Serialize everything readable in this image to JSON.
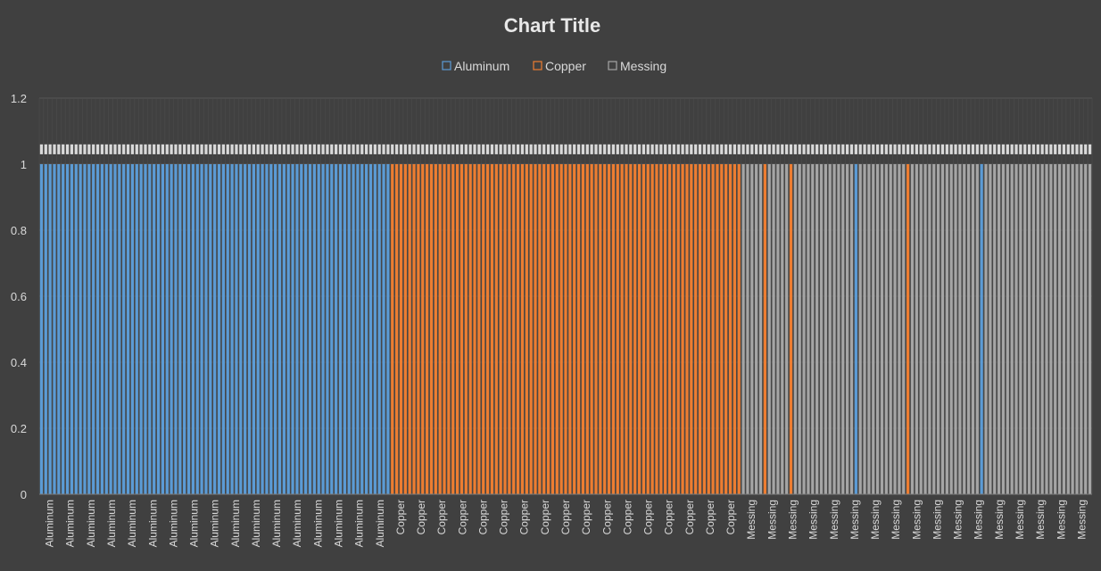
{
  "chart_data": {
    "type": "bar",
    "title": "Chart Title",
    "xlabel": "",
    "ylabel": "",
    "ylim": [
      0,
      1.2
    ],
    "yticks": [
      "0",
      "0.2",
      "0.4",
      "0.6",
      "0.8",
      "1",
      "1.2"
    ],
    "grid": true,
    "legend_position": "top",
    "stacked": true,
    "series": [
      {
        "name": "Aluminum",
        "color": "#5b9bd5"
      },
      {
        "name": "Copper",
        "color": "#ed7d31"
      },
      {
        "name": "Messing",
        "color": "#a5a5a5"
      }
    ],
    "groups": [
      {
        "label": "Aluminum",
        "count": 81,
        "values": {
          "Aluminum": 1,
          "Copper": 0,
          "Messing": 0
        }
      },
      {
        "label": "Copper",
        "count": 81,
        "values": {
          "Aluminum": 0,
          "Copper": 1,
          "Messing": 0
        }
      },
      {
        "label": "Messing",
        "count": 81,
        "values": {
          "Aluminum": 0,
          "Copper": 0,
          "Messing": 1
        },
        "exceptions": [
          {
            "index": 5,
            "values": {
              "Aluminum": 0,
              "Copper": 1,
              "Messing": 0
            }
          },
          {
            "index": 11,
            "values": {
              "Aluminum": 0,
              "Copper": 1,
              "Messing": 0
            }
          },
          {
            "index": 26,
            "values": {
              "Aluminum": 1,
              "Copper": 0,
              "Messing": 0
            }
          },
          {
            "index": 38,
            "values": {
              "Aluminum": 0,
              "Copper": 1,
              "Messing": 0
            }
          },
          {
            "index": 55,
            "values": {
              "Aluminum": 1,
              "Copper": 0,
              "Messing": 0
            }
          }
        ]
      }
    ],
    "category_labels": [
      "Aluminum",
      "Aluminum",
      "Aluminum",
      "Aluminum",
      "Aluminum",
      "Aluminum",
      "Aluminum",
      "Aluminum",
      "Aluminum",
      "Aluminum",
      "Aluminum",
      "Aluminum",
      "Aluminum",
      "Aluminum",
      "Aluminum",
      "Aluminum",
      "Aluminum",
      "Copper",
      "Copper",
      "Copper",
      "Copper",
      "Copper",
      "Copper",
      "Copper",
      "Copper",
      "Copper",
      "Copper",
      "Copper",
      "Copper",
      "Copper",
      "Copper",
      "Copper",
      "Copper",
      "Copper",
      "Messing",
      "Messing",
      "Messing",
      "Messing",
      "Messing",
      "Messing",
      "Messing",
      "Messing",
      "Messing",
      "Messing",
      "Messing",
      "Messing",
      "Messing",
      "Messing",
      "Messing",
      "Messing",
      "Messing"
    ]
  }
}
